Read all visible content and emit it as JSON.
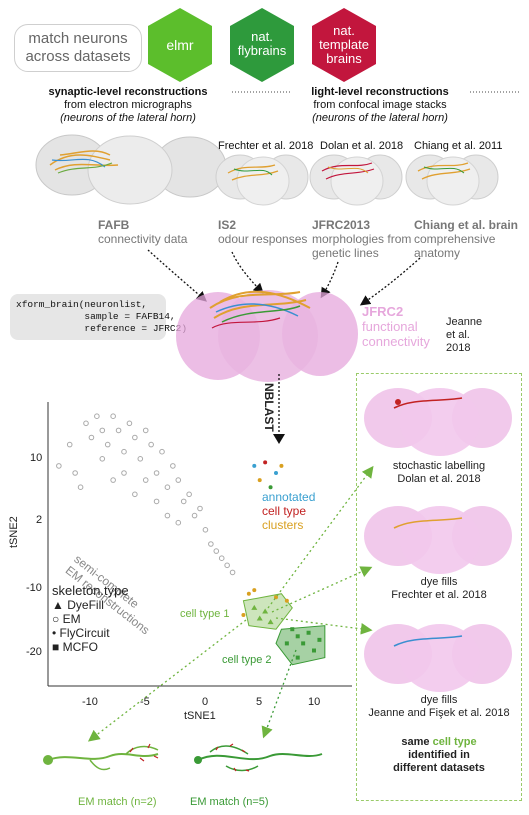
{
  "header": {
    "pill": "match neurons across datasets",
    "hex": [
      {
        "label": "elmr",
        "color": "#5cbe2c"
      },
      {
        "label": "nat. flybrains",
        "color": "#2e9a3c"
      },
      {
        "label": "nat. template brains",
        "color": "#c2163d"
      }
    ]
  },
  "columns": {
    "left_title": "synaptic-level reconstructions",
    "left_sub": "from electron micrographs",
    "left_italic": "(neurons of the lateral horn)",
    "right_title": "light-level reconstructions",
    "right_sub": "from confocal image stacks",
    "right_italic": "(neurons of the lateral horn)"
  },
  "sources": [
    {
      "citation": "",
      "name": "FAFB",
      "desc": "connectivity data"
    },
    {
      "citation": "Frechter et al. 2018",
      "name": "IS2",
      "desc": "odour responses"
    },
    {
      "citation": "Dolan et al. 2018",
      "name": "JFRC2013",
      "desc": "morphologies from genetic lines"
    },
    {
      "citation": "Chiang et al. 2011",
      "name": "Chiang et al. brain",
      "desc": "comprehensive anatomy"
    }
  ],
  "code": "xform_brain(neuronlist,\n            sample = FAFB14,\n            reference = JFRC2)",
  "target": {
    "name": "JFRC2",
    "desc1": "functional",
    "desc2": "connectivity",
    "citation1": "Jeanne",
    "citation2": "et al.",
    "citation3": "2018",
    "color": "#e6a7dc"
  },
  "nblast": "NBLAST",
  "tsne": {
    "xlabel": "tSNE1",
    "ylabel": "tSNE2",
    "xticks": [
      "-10",
      "-5",
      "0",
      "5",
      "10"
    ],
    "yticks": [
      "10",
      "2",
      "-10",
      "-20"
    ],
    "annot_annotated": "annotated",
    "annot_celltype": "cell type",
    "annot_clusters": "clusters",
    "semi1": "semi-complete",
    "semi2": "EM reconstructions",
    "legend_title": "skeleton.type",
    "legend": [
      "DyeFill",
      "EM",
      "FlyCircuit",
      "MCFO"
    ],
    "celltype1": "cell type 1",
    "celltype2": "cell type 2"
  },
  "chart_data": {
    "type": "scatter",
    "xlabel": "tSNE1",
    "ylabel": "tSNE2",
    "series": [
      {
        "name": "EM",
        "points": [
          [
            -13,
            7
          ],
          [
            -12,
            10
          ],
          [
            -11.5,
            6
          ],
          [
            -10.5,
            13
          ],
          [
            -10,
            11
          ],
          [
            -9.5,
            14
          ],
          [
            -9,
            12
          ],
          [
            -8.5,
            10
          ],
          [
            -8,
            14
          ],
          [
            -7.5,
            12
          ],
          [
            -7,
            9
          ],
          [
            -6.5,
            13
          ],
          [
            -6,
            11
          ],
          [
            -5.5,
            8
          ],
          [
            -5,
            12
          ],
          [
            -4.5,
            10
          ],
          [
            -4,
            6
          ],
          [
            -3.5,
            9
          ],
          [
            -3,
            4
          ],
          [
            -2.5,
            7
          ],
          [
            -2,
            5
          ],
          [
            -1.5,
            2
          ],
          [
            -1,
            3
          ],
          [
            -0.5,
            0
          ],
          [
            0,
            1
          ],
          [
            0.5,
            -2
          ],
          [
            1,
            -4
          ],
          [
            1.5,
            -5
          ],
          [
            2,
            -6
          ],
          [
            2.5,
            -7
          ],
          [
            3,
            -8
          ],
          [
            -6,
            3
          ],
          [
            -5,
            5
          ],
          [
            -4,
            2
          ],
          [
            -3,
            0
          ],
          [
            -2,
            -1
          ],
          [
            -8,
            5
          ],
          [
            -9,
            8
          ],
          [
            -11,
            4
          ],
          [
            -7,
            6
          ]
        ]
      },
      {
        "name": "DyeFill",
        "points": [
          [
            5,
            -13
          ],
          [
            5.5,
            -14.5
          ],
          [
            6,
            -13.5
          ],
          [
            6.5,
            -15
          ]
        ]
      },
      {
        "name": "FlyCircuit",
        "points": [
          [
            4.5,
            -11
          ],
          [
            5,
            -10.5
          ],
          [
            7,
            -11.5
          ],
          [
            8,
            -12
          ],
          [
            4,
            -14
          ]
        ]
      },
      {
        "name": "MCFO",
        "points": [
          [
            8.5,
            -16
          ],
          [
            9,
            -17
          ],
          [
            9.5,
            -18
          ],
          [
            10,
            -16.5
          ],
          [
            10.5,
            -19
          ],
          [
            11,
            -17.5
          ],
          [
            9,
            -20
          ],
          [
            8,
            -18
          ]
        ]
      }
    ],
    "clusters": [
      {
        "name": "cell type 1"
      },
      {
        "name": "cell type 2"
      }
    ]
  },
  "right_panel": [
    {
      "line1": "stochastic labelling",
      "line2": "Dolan et al. 2018"
    },
    {
      "line1": "dye fills",
      "line2": "Frechter et al. 2018"
    },
    {
      "line1": "dye fills",
      "line2": "Jeanne and Fişek et al. 2018"
    }
  ],
  "conclusion": {
    "pre": "same",
    "highlight": "cell type",
    "line2": "identified in",
    "line3": "different datasets"
  },
  "em_matches": [
    "EM match (n=2)",
    "EM match (n=5)"
  ],
  "colors": {
    "green": "#6fb43f",
    "dark_green": "#3a9a36",
    "pink": "#e6a7dc",
    "grey": "#bbbbbb"
  }
}
